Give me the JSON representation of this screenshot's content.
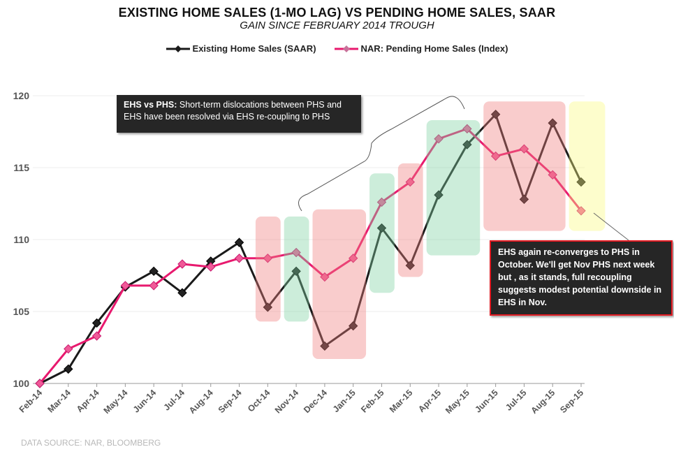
{
  "title": "EXISTING HOME SALES (1-MO LAG) VS PENDING HOME SALES, SAAR",
  "subtitle": "GAIN SINCE FEBRUARY 2014 TROUGH",
  "source": "DATA SOURCE:  NAR, BLOOMBERG",
  "annotations": {
    "note1_bold": "EHS vs PHS:",
    "note1_text": " Short-term dislocations between PHS and EHS have been resolved via EHS re-coupling to PHS",
    "note2_text": "EHS again re-converges  to PHS in October.  We'll get Nov PHS  next week but , as it stands,  full  recoupling suggests modest potential downside in EHS  in Nov."
  },
  "colors": {
    "ehs": "#1a1a1a",
    "phs": "#e8196e",
    "highlight_red": "#f08080",
    "highlight_green": "#7fd3a3",
    "highlight_yellow": "#fbfb80",
    "note_border": "#e31b23"
  },
  "chart_data": {
    "type": "line",
    "title": "EXISTING HOME SALES (1-MO LAG) VS PENDING HOME SALES, SAAR",
    "subtitle": "GAIN SINCE FEBRUARY 2014 TROUGH",
    "xlabel": "",
    "ylabel": "",
    "ylim": [
      100,
      120
    ],
    "yticks": [
      100,
      105,
      110,
      115,
      120
    ],
    "grid": true,
    "legend_position": "top-center",
    "categories": [
      "Feb-14",
      "Mar-14",
      "Apr-14",
      "May-14",
      "Jun-14",
      "Jul-14",
      "Aug-14",
      "Sep-14",
      "Oct-14",
      "Nov-14",
      "Dec-14",
      "Jan-15",
      "Feb-15",
      "Mar-15",
      "Apr-15",
      "May-15",
      "Jun-15",
      "Jul-15",
      "Aug-15",
      "Sep-15"
    ],
    "series": [
      {
        "name": "Existing Home Sales (SAAR)",
        "color": "#1a1a1a",
        "marker": "diamond",
        "values": [
          100,
          101.0,
          104.2,
          106.7,
          107.8,
          106.3,
          108.5,
          109.8,
          105.3,
          107.8,
          102.6,
          104.0,
          110.8,
          108.2,
          113.1,
          116.6,
          118.7,
          112.8,
          118.1,
          114.0
        ]
      },
      {
        "name": "NAR: Pending Home Sales (Index)",
        "color": "#e8196e",
        "marker": "diamond",
        "values": [
          100,
          102.4,
          103.3,
          106.8,
          106.8,
          108.3,
          108.1,
          108.7,
          108.7,
          109.1,
          107.4,
          108.7,
          112.6,
          114.0,
          117.0,
          117.7,
          115.8,
          116.3,
          114.5,
          112.0
        ]
      }
    ],
    "highlight_regions": [
      {
        "from": "Oct-14",
        "to": "Oct-14",
        "color": "red",
        "y": [
          104.3,
          111.6
        ]
      },
      {
        "from": "Nov-14",
        "to": "Nov-14",
        "color": "green",
        "y": [
          104.3,
          111.6
        ]
      },
      {
        "from": "Dec-14",
        "to": "Jan-15",
        "color": "red",
        "y": [
          101.7,
          112.1
        ]
      },
      {
        "from": "Feb-15",
        "to": "Feb-15",
        "color": "green",
        "y": [
          106.3,
          114.6
        ]
      },
      {
        "from": "Mar-15",
        "to": "Mar-15",
        "color": "red",
        "y": [
          107.4,
          115.3
        ]
      },
      {
        "from": "Apr-15",
        "to": "May-15",
        "color": "green",
        "y": [
          108.9,
          118.3
        ]
      },
      {
        "from": "Jun-15",
        "to": "Aug-15",
        "color": "red",
        "y": [
          110.6,
          119.6
        ]
      },
      {
        "from": "Sep-15",
        "to": "Sep-15",
        "color": "yellow",
        "y": [
          110.6,
          119.6
        ]
      }
    ]
  }
}
